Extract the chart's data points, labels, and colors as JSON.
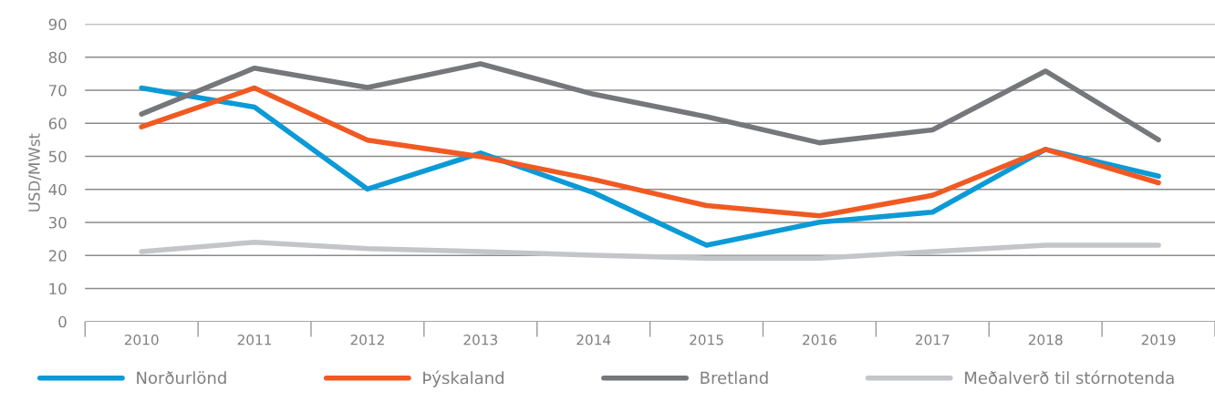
{
  "chart_data": {
    "type": "line",
    "ylabel": "USD/MWst",
    "categories": [
      "2010",
      "2011",
      "2012",
      "2013",
      "2014",
      "2015",
      "2016",
      "2017",
      "2018",
      "2019"
    ],
    "series": [
      {
        "name": "Norðurlönd",
        "color": "#0b9ad6",
        "values": [
          70.7,
          64.9,
          40.1,
          51,
          39,
          23.1,
          30.1,
          33.1,
          52.1,
          44
        ]
      },
      {
        "name": "Þýskaland",
        "color": "#f05a22",
        "values": [
          58.9,
          70.7,
          54.9,
          49.9,
          43,
          35.1,
          32,
          38.2,
          52.1,
          42
        ]
      },
      {
        "name": "Bretland",
        "color": "#76777b",
        "values": [
          62.8,
          76.7,
          70.8,
          78,
          68.8,
          62,
          54.1,
          58,
          75.8,
          55
        ]
      },
      {
        "name": "Meðalverð til stórnotenda",
        "color": "#c4c5c8",
        "values": [
          21.2,
          24,
          22.1,
          21.2,
          20.1,
          19.2,
          19.2,
          21.2,
          23.1,
          23.1
        ]
      }
    ],
    "ylim": [
      0,
      90
    ],
    "yticks": [
      0,
      10,
      20,
      30,
      40,
      50,
      60,
      70,
      80,
      90
    ],
    "grid": "y",
    "legend": "bottom",
    "line_style": "solid",
    "marker": "none"
  }
}
